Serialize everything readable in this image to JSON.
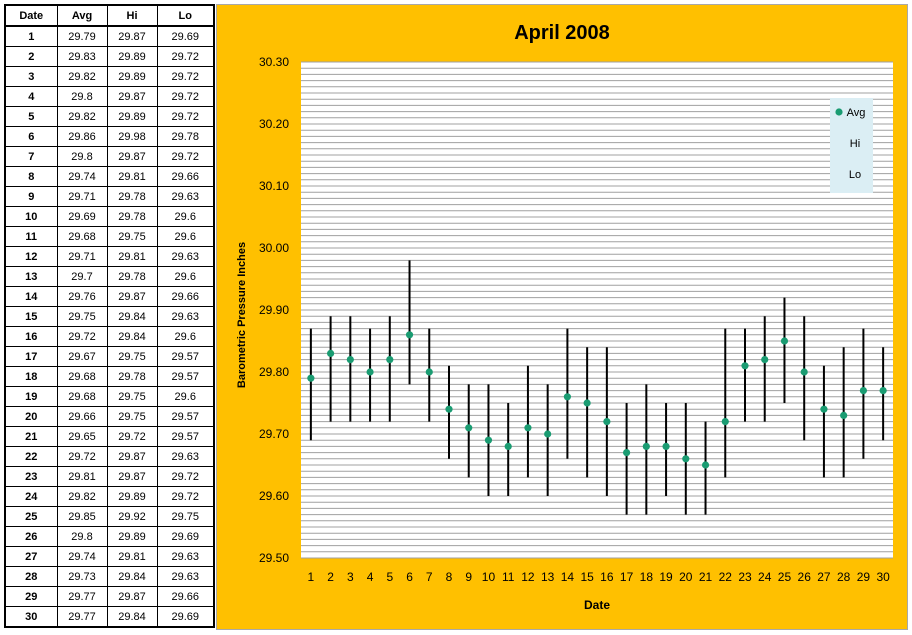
{
  "table": {
    "headers": [
      "Date",
      "Avg",
      "Hi",
      "Lo"
    ],
    "rows": [
      [
        "1",
        "29.79",
        "29.87",
        "29.69"
      ],
      [
        "2",
        "29.83",
        "29.89",
        "29.72"
      ],
      [
        "3",
        "29.82",
        "29.89",
        "29.72"
      ],
      [
        "4",
        "29.8",
        "29.87",
        "29.72"
      ],
      [
        "5",
        "29.82",
        "29.89",
        "29.72"
      ],
      [
        "6",
        "29.86",
        "29.98",
        "29.78"
      ],
      [
        "7",
        "29.8",
        "29.87",
        "29.72"
      ],
      [
        "8",
        "29.74",
        "29.81",
        "29.66"
      ],
      [
        "9",
        "29.71",
        "29.78",
        "29.63"
      ],
      [
        "10",
        "29.69",
        "29.78",
        "29.6"
      ],
      [
        "11",
        "29.68",
        "29.75",
        "29.6"
      ],
      [
        "12",
        "29.71",
        "29.81",
        "29.63"
      ],
      [
        "13",
        "29.7",
        "29.78",
        "29.6"
      ],
      [
        "14",
        "29.76",
        "29.87",
        "29.66"
      ],
      [
        "15",
        "29.75",
        "29.84",
        "29.63"
      ],
      [
        "16",
        "29.72",
        "29.84",
        "29.6"
      ],
      [
        "17",
        "29.67",
        "29.75",
        "29.57"
      ],
      [
        "18",
        "29.68",
        "29.78",
        "29.57"
      ],
      [
        "19",
        "29.68",
        "29.75",
        "29.6"
      ],
      [
        "20",
        "29.66",
        "29.75",
        "29.57"
      ],
      [
        "21",
        "29.65",
        "29.72",
        "29.57"
      ],
      [
        "22",
        "29.72",
        "29.87",
        "29.63"
      ],
      [
        "23",
        "29.81",
        "29.87",
        "29.72"
      ],
      [
        "24",
        "29.82",
        "29.89",
        "29.72"
      ],
      [
        "25",
        "29.85",
        "29.92",
        "29.75"
      ],
      [
        "26",
        "29.8",
        "29.89",
        "29.69"
      ],
      [
        "27",
        "29.74",
        "29.81",
        "29.63"
      ],
      [
        "28",
        "29.73",
        "29.84",
        "29.63"
      ],
      [
        "29",
        "29.77",
        "29.87",
        "29.66"
      ],
      [
        "30",
        "29.77",
        "29.84",
        "29.69"
      ]
    ]
  },
  "chart_data": {
    "type": "scatter",
    "title": "April 2008",
    "xlabel": "Date",
    "ylabel": "Barometric Pressure Inches",
    "x": [
      1,
      2,
      3,
      4,
      5,
      6,
      7,
      8,
      9,
      10,
      11,
      12,
      13,
      14,
      15,
      16,
      17,
      18,
      19,
      20,
      21,
      22,
      23,
      24,
      25,
      26,
      27,
      28,
      29,
      30
    ],
    "xticks": [
      "1",
      "2",
      "3",
      "4",
      "5",
      "6",
      "7",
      "8",
      "9",
      "10",
      "11",
      "12",
      "13",
      "14",
      "15",
      "16",
      "17",
      "18",
      "19",
      "20",
      "21",
      "22",
      "23",
      "24",
      "25",
      "26",
      "27",
      "28",
      "29",
      "30"
    ],
    "ylim": [
      29.5,
      30.3
    ],
    "yticks": [
      "29.50",
      "29.60",
      "29.70",
      "29.80",
      "29.90",
      "30.00",
      "30.10",
      "30.20",
      "30.30"
    ],
    "minor_grid_step": 0.01,
    "grid": true,
    "legend_position": "right",
    "series": [
      {
        "name": "Avg",
        "color": "#1a9c72",
        "marker": "circle",
        "values": [
          29.79,
          29.83,
          29.82,
          29.8,
          29.82,
          29.86,
          29.8,
          29.74,
          29.71,
          29.69,
          29.68,
          29.71,
          29.7,
          29.76,
          29.75,
          29.72,
          29.67,
          29.68,
          29.68,
          29.66,
          29.65,
          29.72,
          29.81,
          29.82,
          29.85,
          29.8,
          29.74,
          29.73,
          29.77,
          29.77
        ]
      },
      {
        "name": "Hi",
        "marker": "none",
        "values": [
          29.87,
          29.89,
          29.89,
          29.87,
          29.89,
          29.98,
          29.87,
          29.81,
          29.78,
          29.78,
          29.75,
          29.81,
          29.78,
          29.87,
          29.84,
          29.84,
          29.75,
          29.78,
          29.75,
          29.75,
          29.72,
          29.87,
          29.87,
          29.89,
          29.92,
          29.89,
          29.81,
          29.84,
          29.87,
          29.84
        ]
      },
      {
        "name": "Lo",
        "marker": "none",
        "values": [
          29.69,
          29.72,
          29.72,
          29.72,
          29.72,
          29.78,
          29.72,
          29.66,
          29.63,
          29.6,
          29.6,
          29.63,
          29.6,
          29.66,
          29.63,
          29.6,
          29.57,
          29.57,
          29.6,
          29.57,
          29.57,
          29.63,
          29.72,
          29.72,
          29.75,
          29.69,
          29.63,
          29.63,
          29.66,
          29.69
        ]
      }
    ],
    "hi_lo_line_color": "#000000",
    "colors": {
      "background": "#ffc000",
      "plot_background": "#ffffff",
      "gridline": "#a0a0a0",
      "legend_background": "#dbeef4"
    }
  }
}
